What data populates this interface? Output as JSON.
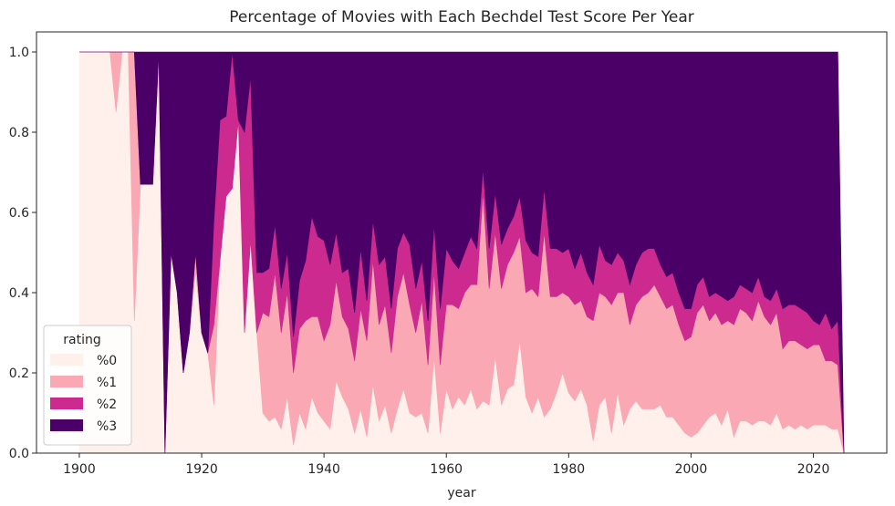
{
  "chart_data": {
    "type": "area",
    "stacked": true,
    "title": "Percentage of Movies with Each Bechdel Test Score Per Year",
    "xlabel": "year",
    "ylabel": "",
    "xlim": [
      1893,
      2032
    ],
    "ylim": [
      0.0,
      1.05
    ],
    "xticks": [
      1900,
      1920,
      1940,
      1960,
      1980,
      2000,
      2020
    ],
    "yticks": [
      0.0,
      0.2,
      0.4,
      0.6,
      0.8,
      1.0
    ],
    "xtick_labels": [
      "1900",
      "1920",
      "1940",
      "1960",
      "1980",
      "2000",
      "2020"
    ],
    "ytick_labels": [
      "0.0",
      "0.2",
      "0.4",
      "0.6",
      "0.8",
      "1.0"
    ],
    "legend": {
      "title": "rating",
      "position": "lower-left",
      "entries": [
        "%0",
        "%1",
        "%2",
        "%3"
      ]
    },
    "colors": {
      "%0": "#fff0ec",
      "%1": "#f9a8b4",
      "%2": "#cc2a8e",
      "%3": "#4a0066"
    },
    "x": [
      1900,
      1901,
      1902,
      1903,
      1904,
      1905,
      1906,
      1907,
      1908,
      1909,
      1910,
      1911,
      1912,
      1913,
      1914,
      1915,
      1916,
      1917,
      1918,
      1919,
      1920,
      1921,
      1922,
      1923,
      1924,
      1925,
      1926,
      1927,
      1928,
      1929,
      1930,
      1931,
      1932,
      1933,
      1934,
      1935,
      1936,
      1937,
      1938,
      1939,
      1940,
      1941,
      1942,
      1943,
      1944,
      1945,
      1946,
      1947,
      1948,
      1949,
      1950,
      1951,
      1952,
      1953,
      1954,
      1955,
      1956,
      1957,
      1958,
      1959,
      1960,
      1961,
      1962,
      1963,
      1964,
      1965,
      1966,
      1967,
      1968,
      1969,
      1970,
      1971,
      1972,
      1973,
      1974,
      1975,
      1976,
      1977,
      1978,
      1979,
      1980,
      1981,
      1982,
      1983,
      1984,
      1985,
      1986,
      1987,
      1988,
      1989,
      1990,
      1991,
      1992,
      1993,
      1994,
      1995,
      1996,
      1997,
      1998,
      1999,
      2000,
      2001,
      2002,
      2003,
      2004,
      2005,
      2006,
      2007,
      2008,
      2009,
      2010,
      2011,
      2012,
      2013,
      2014,
      2015,
      2016,
      2017,
      2018,
      2019,
      2020,
      2021,
      2022,
      2023,
      2024,
      2025
    ],
    "series": [
      {
        "name": "%0",
        "values": [
          1.0,
          1.0,
          1.0,
          1.0,
          1.0,
          1.0,
          0.85,
          1.0,
          1.0,
          0.33,
          0.67,
          0.67,
          0.67,
          1.0,
          0.0,
          0.5,
          0.4,
          0.2,
          0.3,
          0.45,
          0.3,
          0.25,
          0.12,
          0.48,
          0.64,
          0.66,
          0.83,
          0.3,
          0.53,
          0.3,
          0.1,
          0.08,
          0.09,
          0.06,
          0.14,
          0.02,
          0.1,
          0.06,
          0.14,
          0.1,
          0.08,
          0.06,
          0.18,
          0.14,
          0.11,
          0.05,
          0.11,
          0.04,
          0.17,
          0.08,
          0.12,
          0.05,
          0.11,
          0.16,
          0.1,
          0.09,
          0.1,
          0.05,
          0.24,
          0.05,
          0.16,
          0.11,
          0.14,
          0.12,
          0.16,
          0.11,
          0.13,
          0.12,
          0.24,
          0.12,
          0.16,
          0.17,
          0.28,
          0.14,
          0.1,
          0.14,
          0.09,
          0.11,
          0.15,
          0.2,
          0.15,
          0.13,
          0.16,
          0.12,
          0.03,
          0.12,
          0.14,
          0.05,
          0.15,
          0.07,
          0.11,
          0.13,
          0.11,
          0.11,
          0.11,
          0.12,
          0.09,
          0.09,
          0.07,
          0.05,
          0.04,
          0.05,
          0.07,
          0.09,
          0.1,
          0.07,
          0.11,
          0.04,
          0.08,
          0.08,
          0.07,
          0.08,
          0.08,
          0.07,
          0.1,
          0.06,
          0.07,
          0.06,
          0.07,
          0.06,
          0.07,
          0.07,
          0.07,
          0.06,
          0.06,
          0.0
        ]
      },
      {
        "name": "%1",
        "values": [
          0.0,
          0.0,
          0.0,
          0.0,
          0.0,
          0.0,
          0.15,
          0.0,
          0.0,
          0.67,
          0.0,
          0.0,
          0.0,
          0.0,
          0.0,
          0.0,
          0.0,
          0.0,
          0.0,
          0.05,
          0.0,
          0.0,
          0.2,
          0.0,
          0.0,
          0.0,
          0.0,
          0.0,
          0.0,
          0.0,
          0.25,
          0.26,
          0.36,
          0.24,
          0.26,
          0.18,
          0.21,
          0.27,
          0.2,
          0.24,
          0.2,
          0.26,
          0.25,
          0.2,
          0.2,
          0.18,
          0.25,
          0.24,
          0.31,
          0.24,
          0.25,
          0.2,
          0.28,
          0.29,
          0.27,
          0.21,
          0.28,
          0.17,
          0.21,
          0.17,
          0.21,
          0.26,
          0.22,
          0.28,
          0.26,
          0.31,
          0.52,
          0.29,
          0.31,
          0.29,
          0.31,
          0.33,
          0.26,
          0.26,
          0.31,
          0.25,
          0.46,
          0.28,
          0.24,
          0.2,
          0.24,
          0.24,
          0.22,
          0.22,
          0.3,
          0.28,
          0.25,
          0.32,
          0.25,
          0.33,
          0.21,
          0.24,
          0.28,
          0.29,
          0.31,
          0.27,
          0.27,
          0.28,
          0.25,
          0.23,
          0.25,
          0.3,
          0.3,
          0.24,
          0.25,
          0.25,
          0.22,
          0.28,
          0.28,
          0.27,
          0.26,
          0.3,
          0.26,
          0.25,
          0.25,
          0.2,
          0.21,
          0.22,
          0.2,
          0.2,
          0.2,
          0.2,
          0.16,
          0.17,
          0.16,
          0.0
        ]
      },
      {
        "name": "%2",
        "values": [
          0.0,
          0.0,
          0.0,
          0.0,
          0.0,
          0.0,
          0.0,
          0.0,
          0.0,
          0.0,
          0.0,
          0.0,
          0.0,
          0.0,
          0.0,
          0.0,
          0.0,
          0.0,
          0.0,
          0.0,
          0.0,
          0.0,
          0.26,
          0.35,
          0.2,
          0.34,
          0.0,
          0.5,
          0.41,
          0.15,
          0.1,
          0.12,
          0.12,
          0.11,
          0.1,
          0.09,
          0.12,
          0.15,
          0.25,
          0.2,
          0.25,
          0.15,
          0.12,
          0.11,
          0.15,
          0.12,
          0.15,
          0.1,
          0.1,
          0.15,
          0.12,
          0.11,
          0.12,
          0.1,
          0.15,
          0.11,
          0.1,
          0.11,
          0.12,
          0.14,
          0.14,
          0.11,
          0.1,
          0.1,
          0.12,
          0.09,
          0.06,
          0.1,
          0.1,
          0.11,
          0.09,
          0.09,
          0.1,
          0.13,
          0.09,
          0.1,
          0.11,
          0.12,
          0.12,
          0.1,
          0.12,
          0.09,
          0.12,
          0.11,
          0.09,
          0.12,
          0.09,
          0.1,
          0.1,
          0.08,
          0.1,
          0.1,
          0.11,
          0.11,
          0.09,
          0.08,
          0.08,
          0.08,
          0.08,
          0.08,
          0.07,
          0.07,
          0.07,
          0.06,
          0.05,
          0.07,
          0.05,
          0.07,
          0.06,
          0.06,
          0.07,
          0.06,
          0.05,
          0.06,
          0.06,
          0.1,
          0.09,
          0.09,
          0.09,
          0.09,
          0.06,
          0.05,
          0.12,
          0.08,
          0.11,
          0.0
        ]
      }
    ],
    "notes_series3": "%3 fills the remainder to 1.0"
  }
}
